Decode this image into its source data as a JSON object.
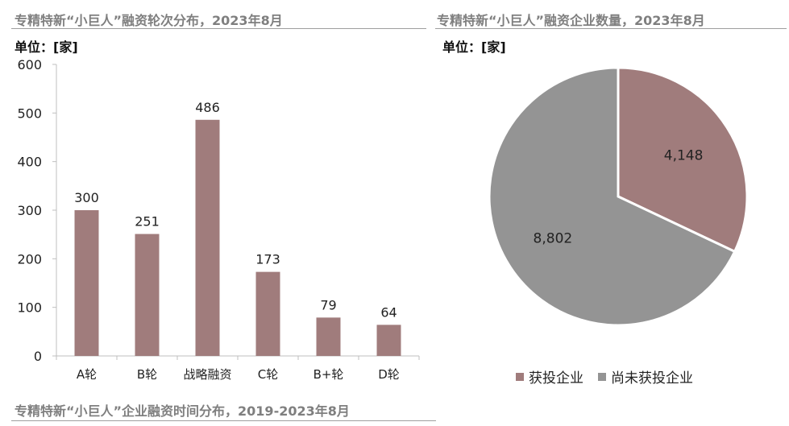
{
  "colors": {
    "mauve": "#a07c7c",
    "gray": "#949494",
    "title": "#7f7f7f"
  },
  "left_title": "专精特新“小巨人”融资轮次分布，2023年8月",
  "left_unit": "单位：[家]",
  "right_title": "专精特新“小巨人”融资企业数量，2023年8月",
  "right_unit": "单位：[家]",
  "bottom_title": "专精特新“小巨人”企业融资时间分布，2019-2023年8月",
  "chart_data": [
    {
      "type": "bar",
      "title": "专精特新“小巨人”融资轮次分布，2023年8月",
      "ylabel": "单位：[家]",
      "categories": [
        "A轮",
        "B轮",
        "战略融资",
        "C轮",
        "B+轮",
        "D轮"
      ],
      "values": [
        300,
        251,
        486,
        173,
        79,
        64
      ],
      "ylim": [
        0,
        600
      ],
      "yticks": [
        0,
        100,
        200,
        300,
        400,
        500,
        600
      ],
      "data_labels": [
        "300",
        "251",
        "486",
        "173",
        "79",
        "64"
      ],
      "grid": false
    },
    {
      "type": "pie",
      "title": "专精特新“小巨人”融资企业数量，2023年8月",
      "labels": [
        "获投企业",
        "尚未获投企业"
      ],
      "values": [
        4148,
        8802
      ],
      "data_labels": [
        "4,148",
        "8,802"
      ],
      "colors": [
        "#a07c7c",
        "#949494"
      ],
      "legend": "bottom"
    }
  ]
}
